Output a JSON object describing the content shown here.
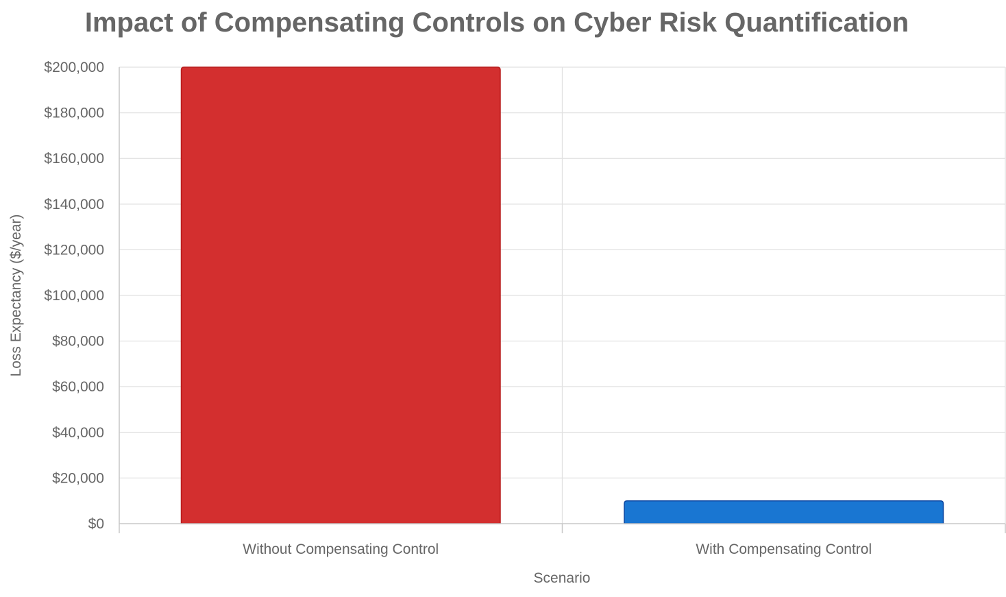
{
  "chart_data": {
    "type": "bar",
    "title": "Impact of Compensating Controls on Cyber Risk Quantification",
    "xlabel": "Scenario",
    "ylabel": "Loss Expectancy ($/year)",
    "categories": [
      "Without Compensating Control",
      "With Compensating Control"
    ],
    "values": [
      200000,
      10000
    ],
    "colors": [
      "#d32f2f",
      "#1976d2"
    ],
    "border_colors": [
      "#b71c1c",
      "#0d47a1"
    ],
    "ylim": [
      0,
      200000
    ],
    "yticks": [
      0,
      20000,
      40000,
      60000,
      80000,
      100000,
      120000,
      140000,
      160000,
      180000,
      200000
    ],
    "ytick_labels": [
      "$0",
      "$20,000",
      "$40,000",
      "$60,000",
      "$80,000",
      "$100,000",
      "$120,000",
      "$140,000",
      "$160,000",
      "$180,000",
      "$200,000"
    ],
    "grid": true,
    "legend": false
  }
}
